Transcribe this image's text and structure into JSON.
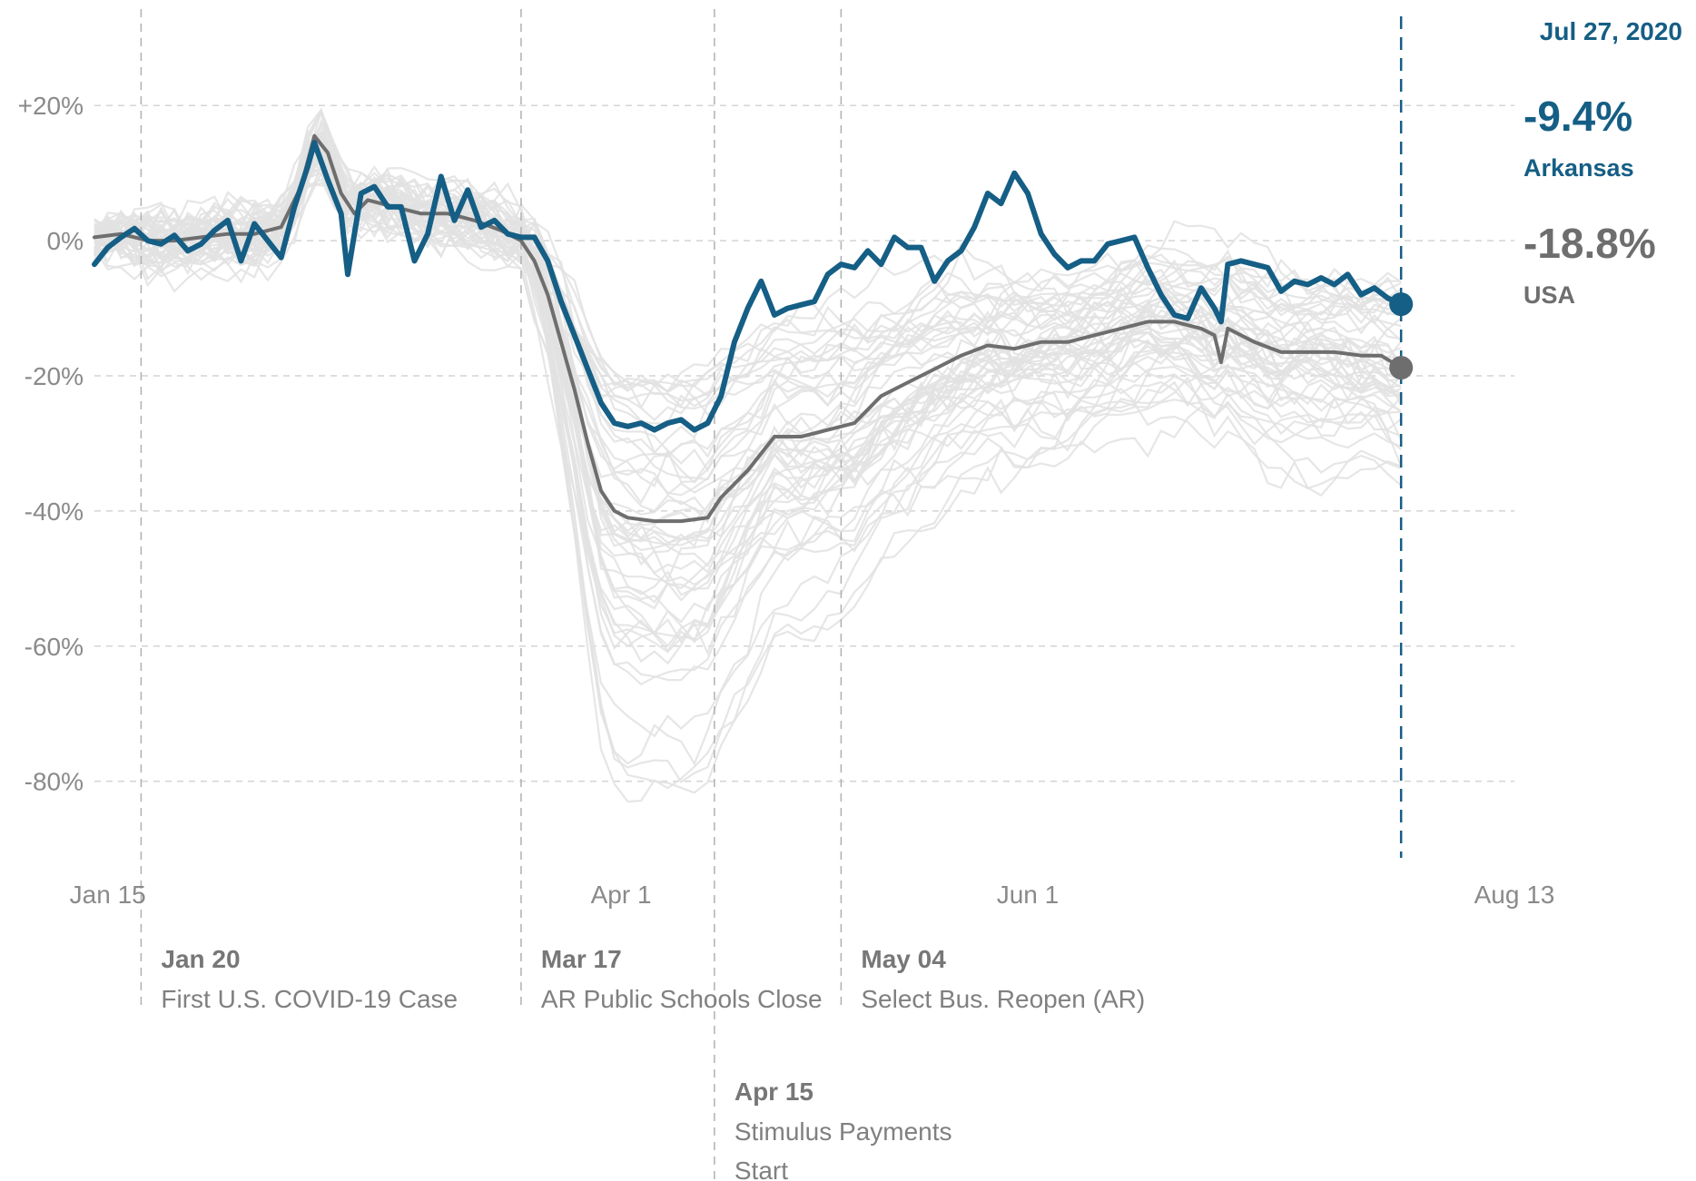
{
  "chart_data": {
    "type": "line",
    "title": "",
    "xlabel": "",
    "ylabel": "",
    "x_range": [
      "2020-01-13",
      "2020-08-13"
    ],
    "ylim": [
      -92,
      34
    ],
    "y_ticks": [
      20,
      0,
      -20,
      -40,
      -60,
      -80
    ],
    "y_tick_labels": [
      "+20%",
      "0%",
      "-20%",
      "-40%",
      "-60%",
      "-80%"
    ],
    "x_ticks": [
      {
        "date": "2020-01-15",
        "label": "Jan 15"
      },
      {
        "date": "2020-04-01",
        "label": "Apr 1"
      },
      {
        "date": "2020-06-01",
        "label": "Jun 1"
      },
      {
        "date": "2020-08-13",
        "label": "Aug 13"
      }
    ],
    "grid": "horizontal dashed",
    "highlight": {
      "date": "Jul 27, 2020",
      "date_value": "2020-07-27",
      "items": [
        {
          "key": "arkansas",
          "value_label": "-9.4%",
          "name": "Arkansas",
          "value": -9.4
        },
        {
          "key": "usa",
          "value_label": "-18.8%",
          "name": "USA",
          "value": -18.8
        }
      ]
    },
    "events": [
      {
        "date": "2020-01-20",
        "label": "Jan 20",
        "text": [
          "First U.S. COVID-19 Case"
        ],
        "row": 0
      },
      {
        "date": "2020-03-17",
        "label": "Mar 17",
        "text": [
          "AR Public Schools Close"
        ],
        "row": 0
      },
      {
        "date": "2020-05-04",
        "label": "May 04",
        "text": [
          "Select Bus. Reopen (AR)"
        ],
        "row": 0
      },
      {
        "date": "2020-04-15",
        "label": "Apr 15",
        "text": [
          "Stimulus Payments",
          "Start"
        ],
        "row": 1
      }
    ],
    "series": [
      {
        "name": "Arkansas",
        "key": "arkansas",
        "color": "#155e85",
        "points": [
          [
            "2020-01-13",
            -3.5
          ],
          [
            "2020-01-15",
            -1
          ],
          [
            "2020-01-17",
            0.5
          ],
          [
            "2020-01-19",
            1.8
          ],
          [
            "2020-01-21",
            0
          ],
          [
            "2020-01-23",
            -0.5
          ],
          [
            "2020-01-25",
            0.8
          ],
          [
            "2020-01-27",
            -1.5
          ],
          [
            "2020-01-29",
            -0.5
          ],
          [
            "2020-01-31",
            1.5
          ],
          [
            "2020-02-02",
            3
          ],
          [
            "2020-02-04",
            -3
          ],
          [
            "2020-02-06",
            2.5
          ],
          [
            "2020-02-08",
            0
          ],
          [
            "2020-02-10",
            -2.5
          ],
          [
            "2020-02-12",
            5
          ],
          [
            "2020-02-14",
            11
          ],
          [
            "2020-02-15",
            14.5
          ],
          [
            "2020-02-17",
            9
          ],
          [
            "2020-02-19",
            4
          ],
          [
            "2020-02-20",
            -5
          ],
          [
            "2020-02-22",
            7
          ],
          [
            "2020-02-24",
            8
          ],
          [
            "2020-02-26",
            5
          ],
          [
            "2020-02-28",
            5
          ],
          [
            "2020-03-01",
            -3
          ],
          [
            "2020-03-03",
            1
          ],
          [
            "2020-03-05",
            9.5
          ],
          [
            "2020-03-07",
            3
          ],
          [
            "2020-03-09",
            7.5
          ],
          [
            "2020-03-11",
            2
          ],
          [
            "2020-03-13",
            3
          ],
          [
            "2020-03-15",
            1
          ],
          [
            "2020-03-17",
            0.5
          ],
          [
            "2020-03-19",
            0.5
          ],
          [
            "2020-03-21",
            -3
          ],
          [
            "2020-03-23",
            -9
          ],
          [
            "2020-03-25",
            -14
          ],
          [
            "2020-03-27",
            -19
          ],
          [
            "2020-03-29",
            -24
          ],
          [
            "2020-03-31",
            -27
          ],
          [
            "2020-04-02",
            -27.5
          ],
          [
            "2020-04-04",
            -27
          ],
          [
            "2020-04-06",
            -28
          ],
          [
            "2020-04-08",
            -27
          ],
          [
            "2020-04-10",
            -26.5
          ],
          [
            "2020-04-12",
            -28
          ],
          [
            "2020-04-14",
            -27
          ],
          [
            "2020-04-16",
            -23
          ],
          [
            "2020-04-18",
            -15
          ],
          [
            "2020-04-20",
            -10
          ],
          [
            "2020-04-22",
            -6
          ],
          [
            "2020-04-24",
            -11
          ],
          [
            "2020-04-26",
            -10
          ],
          [
            "2020-04-28",
            -9.5
          ],
          [
            "2020-04-30",
            -9
          ],
          [
            "2020-05-02",
            -5
          ],
          [
            "2020-05-04",
            -3.5
          ],
          [
            "2020-05-06",
            -4
          ],
          [
            "2020-05-08",
            -1.5
          ],
          [
            "2020-05-10",
            -3.5
          ],
          [
            "2020-05-12",
            0.5
          ],
          [
            "2020-05-14",
            -1
          ],
          [
            "2020-05-16",
            -1
          ],
          [
            "2020-05-18",
            -6
          ],
          [
            "2020-05-20",
            -3
          ],
          [
            "2020-05-22",
            -1.5
          ],
          [
            "2020-05-24",
            2
          ],
          [
            "2020-05-26",
            7
          ],
          [
            "2020-05-28",
            5.5
          ],
          [
            "2020-05-30",
            10
          ],
          [
            "2020-06-01",
            7
          ],
          [
            "2020-06-03",
            1
          ],
          [
            "2020-06-05",
            -2
          ],
          [
            "2020-06-07",
            -4
          ],
          [
            "2020-06-09",
            -3
          ],
          [
            "2020-06-11",
            -3
          ],
          [
            "2020-06-13",
            -0.5
          ],
          [
            "2020-06-15",
            0
          ],
          [
            "2020-06-17",
            0.5
          ],
          [
            "2020-06-19",
            -4
          ],
          [
            "2020-06-21",
            -8
          ],
          [
            "2020-06-23",
            -11
          ],
          [
            "2020-06-25",
            -11.5
          ],
          [
            "2020-06-27",
            -7
          ],
          [
            "2020-06-29",
            -10
          ],
          [
            "2020-06-30",
            -12
          ],
          [
            "2020-07-01",
            -3.5
          ],
          [
            "2020-07-03",
            -3
          ],
          [
            "2020-07-05",
            -3.5
          ],
          [
            "2020-07-07",
            -4
          ],
          [
            "2020-07-09",
            -7.5
          ],
          [
            "2020-07-11",
            -6
          ],
          [
            "2020-07-13",
            -6.5
          ],
          [
            "2020-07-15",
            -5.5
          ],
          [
            "2020-07-17",
            -6.5
          ],
          [
            "2020-07-19",
            -5
          ],
          [
            "2020-07-21",
            -8
          ],
          [
            "2020-07-23",
            -7
          ],
          [
            "2020-07-25",
            -8.5
          ],
          [
            "2020-07-27",
            -9.4
          ]
        ]
      },
      {
        "name": "USA",
        "key": "usa",
        "color": "#6e6e6e",
        "points": [
          [
            "2020-01-13",
            0.5
          ],
          [
            "2020-01-17",
            1
          ],
          [
            "2020-01-21",
            0
          ],
          [
            "2020-01-25",
            0
          ],
          [
            "2020-01-29",
            0.5
          ],
          [
            "2020-02-02",
            1
          ],
          [
            "2020-02-06",
            1
          ],
          [
            "2020-02-10",
            2
          ],
          [
            "2020-02-13",
            8
          ],
          [
            "2020-02-15",
            15.5
          ],
          [
            "2020-02-17",
            13
          ],
          [
            "2020-02-19",
            7
          ],
          [
            "2020-02-21",
            4
          ],
          [
            "2020-02-23",
            6
          ],
          [
            "2020-02-27",
            5
          ],
          [
            "2020-03-02",
            4
          ],
          [
            "2020-03-06",
            4
          ],
          [
            "2020-03-10",
            3
          ],
          [
            "2020-03-14",
            1.5
          ],
          [
            "2020-03-17",
            0
          ],
          [
            "2020-03-19",
            -3
          ],
          [
            "2020-03-21",
            -8
          ],
          [
            "2020-03-23",
            -15
          ],
          [
            "2020-03-25",
            -22
          ],
          [
            "2020-03-27",
            -30
          ],
          [
            "2020-03-29",
            -37
          ],
          [
            "2020-03-31",
            -40
          ],
          [
            "2020-04-02",
            -41
          ],
          [
            "2020-04-06",
            -41.5
          ],
          [
            "2020-04-10",
            -41.5
          ],
          [
            "2020-04-14",
            -41
          ],
          [
            "2020-04-16",
            -38
          ],
          [
            "2020-04-20",
            -34
          ],
          [
            "2020-04-24",
            -29
          ],
          [
            "2020-04-28",
            -29
          ],
          [
            "2020-05-02",
            -28
          ],
          [
            "2020-05-06",
            -27
          ],
          [
            "2020-05-10",
            -23
          ],
          [
            "2020-05-14",
            -21
          ],
          [
            "2020-05-18",
            -19
          ],
          [
            "2020-05-22",
            -17
          ],
          [
            "2020-05-26",
            -15.5
          ],
          [
            "2020-05-30",
            -16
          ],
          [
            "2020-06-03",
            -15
          ],
          [
            "2020-06-07",
            -15
          ],
          [
            "2020-06-11",
            -14
          ],
          [
            "2020-06-15",
            -13
          ],
          [
            "2020-06-19",
            -12
          ],
          [
            "2020-06-23",
            -12
          ],
          [
            "2020-06-27",
            -13
          ],
          [
            "2020-06-29",
            -14
          ],
          [
            "2020-06-30",
            -18
          ],
          [
            "2020-07-01",
            -13
          ],
          [
            "2020-07-05",
            -15
          ],
          [
            "2020-07-09",
            -16.5
          ],
          [
            "2020-07-13",
            -16.5
          ],
          [
            "2020-07-17",
            -16.5
          ],
          [
            "2020-07-21",
            -17
          ],
          [
            "2020-07-24",
            -17
          ],
          [
            "2020-07-27",
            -18.8
          ]
        ]
      }
    ]
  },
  "colors": {
    "arkansas": "#155e85",
    "usa": "#6e6e6e",
    "background_states": "#e2e2e2",
    "grid": "#d4d4d4",
    "event_line": "#b0b0b0"
  }
}
